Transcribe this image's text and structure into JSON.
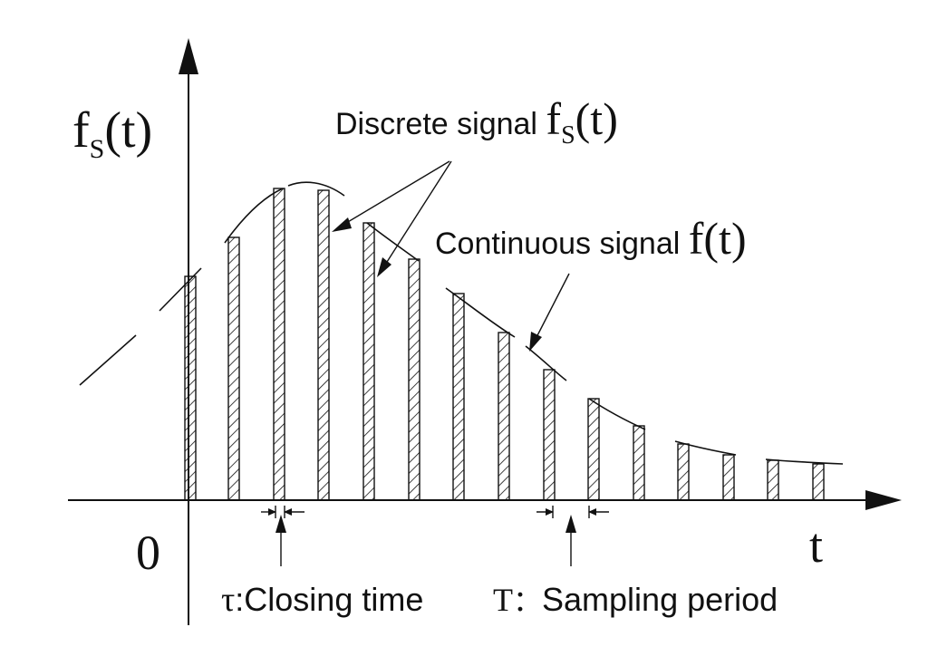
{
  "axes": {
    "y_label": "f",
    "y_sub": "S",
    "y_arg": "(t)",
    "x_label": "t",
    "origin_label": "0"
  },
  "annotations": {
    "discrete": {
      "text": "Discrete signal ",
      "sym": "f",
      "sub": "S",
      "arg": "(t)"
    },
    "continuous": {
      "text": "Continuous signal ",
      "sym": "f(t)"
    },
    "closing": {
      "sym": "τ",
      "text": ":Closing time"
    },
    "period": {
      "sym": "T",
      "sep": "：",
      "text": "Sampling period"
    }
  },
  "colors": {
    "line": "#111111",
    "background": "#ffffff"
  }
}
